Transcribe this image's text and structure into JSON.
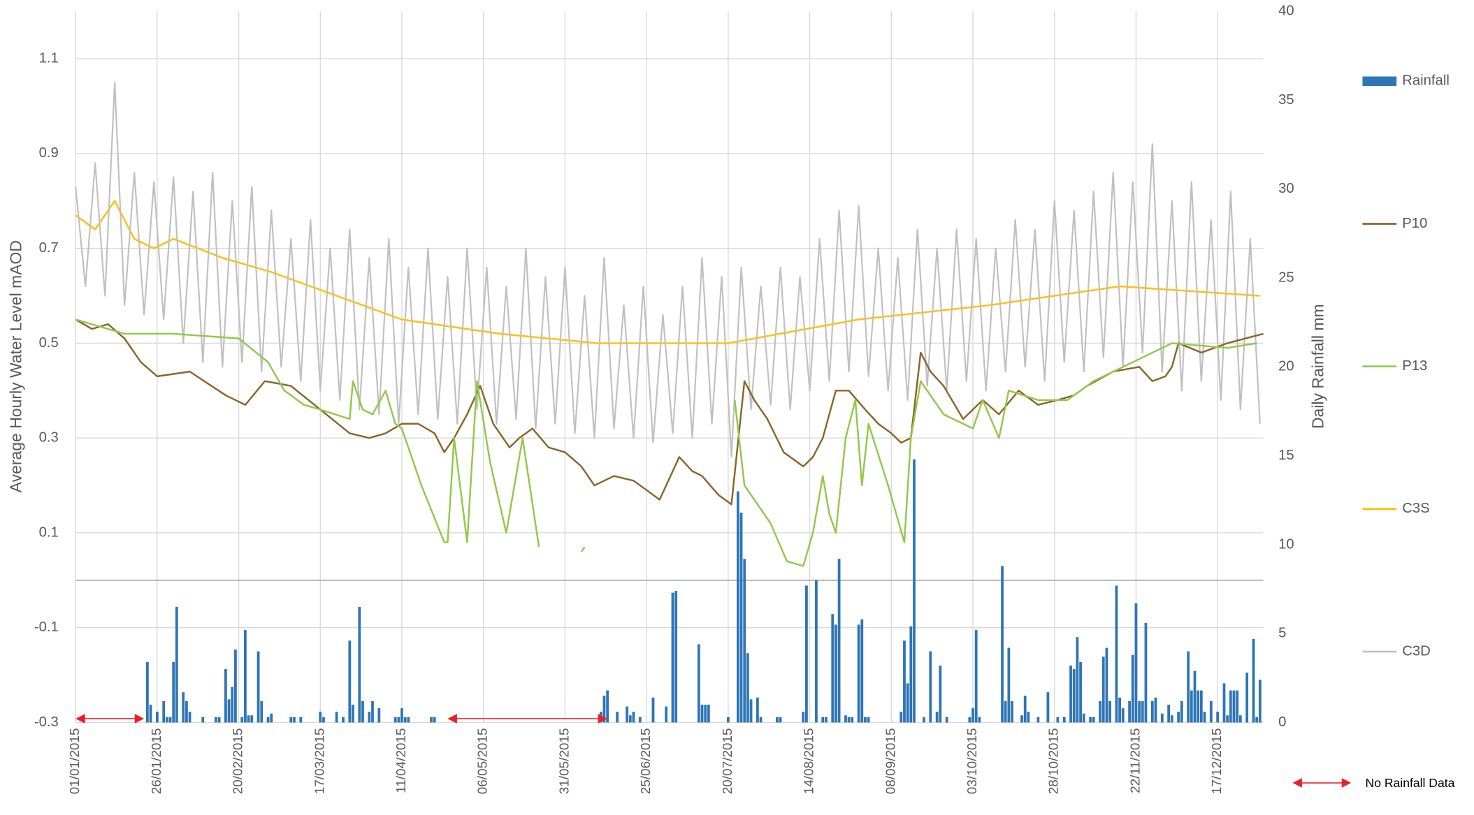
{
  "chart_data": {
    "type": "combo",
    "y_label": "Average Hourly Water Level mAOD",
    "y2_label": "Daily Rainfall mm",
    "xlim": [
      0,
      364
    ],
    "xticks": [
      {
        "value": 0,
        "label": "01/01/2015"
      },
      {
        "value": 25,
        "label": "26/01/2015"
      },
      {
        "value": 50,
        "label": "20/02/2015"
      },
      {
        "value": 75,
        "label": "17/03/2015"
      },
      {
        "value": 100,
        "label": "11/04/2015"
      },
      {
        "value": 125,
        "label": "06/05/2015"
      },
      {
        "value": 150,
        "label": "31/05/2015"
      },
      {
        "value": 175,
        "label": "25/06/2015"
      },
      {
        "value": 200,
        "label": "20/07/2015"
      },
      {
        "value": 225,
        "label": "14/08/2015"
      },
      {
        "value": 250,
        "label": "08/09/2015"
      },
      {
        "value": 275,
        "label": "03/10/2015"
      },
      {
        "value": 300,
        "label": "28/10/2015"
      },
      {
        "value": 325,
        "label": "22/11/2015"
      },
      {
        "value": 350,
        "label": "17/12/2015"
      }
    ],
    "ylim": [
      -0.3,
      1.2
    ],
    "yticks": [
      -0.3,
      -0.1,
      0.1,
      0.3,
      0.5,
      0.7,
      0.9,
      1.1
    ],
    "y2lim": [
      0,
      40
    ],
    "y2ticks": [
      0,
      5,
      10,
      15,
      20,
      25,
      30,
      35,
      40
    ],
    "grid": true,
    "legend": "right",
    "series": [
      {
        "name": "Rainfall",
        "type": "bar",
        "axis": "y2",
        "color": "#2e75b6",
        "x": [
          22,
          23,
          25,
          27,
          28,
          29,
          30,
          31,
          33,
          34,
          35,
          39,
          43,
          44,
          46,
          47,
          48,
          49,
          51,
          52,
          53,
          54,
          56,
          57,
          59,
          60,
          66,
          67,
          69,
          75,
          76,
          80,
          82,
          84,
          85,
          87,
          88,
          90,
          91,
          93,
          98,
          99,
          100,
          101,
          102,
          109,
          110,
          161,
          162,
          163,
          166,
          169,
          170,
          171,
          173,
          177,
          181,
          183,
          184,
          191,
          192,
          193,
          194,
          200,
          203,
          204,
          205,
          206,
          207,
          209,
          210,
          215,
          216,
          223,
          224,
          227,
          229,
          230,
          232,
          233,
          234,
          236,
          237,
          238,
          240,
          241,
          242,
          243,
          253,
          254,
          255,
          256,
          257,
          260,
          262,
          264,
          265,
          267,
          274,
          275,
          276,
          277,
          284,
          285,
          286,
          287,
          290,
          291,
          292,
          295,
          298,
          301,
          303,
          305,
          306,
          307,
          308,
          309,
          311,
          312,
          314,
          315,
          316,
          317,
          319,
          320,
          321,
          323,
          324,
          325,
          326,
          327,
          328,
          330,
          331,
          333,
          335,
          336,
          338,
          339,
          341,
          342,
          343,
          344,
          345,
          346,
          348,
          350,
          352,
          353,
          354,
          355,
          356,
          357,
          359,
          361,
          362,
          363
        ],
        "values": [
          3.4,
          1.0,
          0.6,
          1.2,
          0.3,
          0.3,
          3.4,
          6.5,
          1.7,
          1.2,
          0.6,
          0.3,
          0.3,
          0.3,
          3.0,
          1.3,
          2.0,
          4.1,
          0.3,
          5.2,
          0.4,
          0.4,
          4.0,
          1.2,
          0.3,
          0.5,
          0.3,
          0.3,
          0.3,
          0.6,
          0.3,
          0.6,
          0.3,
          4.6,
          1.0,
          6.5,
          1.2,
          0.6,
          1.2,
          0.8,
          0.3,
          0.3,
          0.8,
          0.3,
          0.3,
          0.3,
          0.3,
          0.6,
          1.5,
          1.8,
          0.6,
          0.9,
          0.4,
          0.6,
          0.3,
          1.4,
          0.9,
          7.3,
          7.4,
          4.4,
          1.0,
          1.0,
          1.0,
          0.3,
          13.0,
          11.8,
          9.2,
          3.9,
          1.3,
          1.4,
          0.3,
          0.3,
          0.3,
          0.6,
          7.7,
          8.0,
          0.3,
          0.3,
          6.1,
          5.5,
          9.2,
          0.4,
          0.3,
          0.3,
          5.5,
          5.8,
          0.3,
          0.3,
          0.6,
          4.6,
          2.2,
          5.4,
          14.8,
          0.3,
          4.0,
          0.6,
          3.2,
          0.3,
          0.3,
          0.8,
          5.2,
          0.3,
          8.8,
          1.2,
          4.2,
          1.2,
          0.4,
          1.5,
          0.6,
          0.3,
          1.7,
          0.3,
          0.3,
          3.2,
          3.0,
          4.8,
          3.4,
          0.5,
          0.3,
          0.3,
          1.2,
          3.7,
          4.2,
          1.2,
          7.7,
          1.4,
          0.8,
          1.2,
          3.8,
          6.7,
          1.2,
          1.2,
          5.6,
          1.2,
          1.4,
          0.5,
          1.0,
          0.4,
          0.6,
          1.2,
          4.0,
          1.8,
          2.9,
          1.8,
          1.8,
          0.6,
          1.2,
          0.6,
          2.2,
          0.4,
          1.8,
          1.8,
          1.8,
          0.4,
          2.8,
          4.7,
          0.3,
          2.4
        ]
      },
      {
        "name": "P10",
        "type": "line",
        "color": "#8c6428",
        "x": [
          0,
          5,
          10,
          15,
          20,
          25,
          35,
          46,
          52,
          58,
          66,
          75,
          84,
          90,
          95,
          100,
          105,
          110,
          113,
          116,
          120,
          124,
          128,
          133,
          136,
          140,
          145,
          150,
          155,
          159,
          165,
          171,
          175,
          179,
          185,
          189,
          192,
          197,
          201,
          205,
          208,
          212,
          217,
          223,
          226,
          229,
          233,
          237,
          242,
          246,
          250,
          253,
          256,
          259,
          262,
          266,
          272,
          278,
          283,
          289,
          295,
          301,
          306,
          310,
          318,
          326,
          330,
          334,
          336,
          338,
          345,
          353,
          364
        ],
        "values": [
          0.55,
          0.53,
          0.54,
          0.51,
          0.46,
          0.43,
          0.44,
          0.39,
          0.37,
          0.42,
          0.41,
          0.36,
          0.31,
          0.3,
          0.31,
          0.33,
          0.33,
          0.31,
          0.27,
          0.3,
          0.35,
          0.41,
          0.33,
          0.28,
          0.3,
          0.32,
          0.28,
          0.27,
          0.24,
          0.2,
          0.22,
          0.21,
          0.19,
          0.17,
          0.26,
          0.23,
          0.22,
          0.18,
          0.16,
          0.42,
          0.38,
          0.34,
          0.27,
          0.24,
          0.26,
          0.3,
          0.4,
          0.4,
          0.36,
          0.33,
          0.31,
          0.29,
          0.3,
          0.48,
          0.44,
          0.41,
          0.34,
          0.38,
          0.35,
          0.4,
          0.37,
          0.38,
          0.39,
          0.41,
          0.44,
          0.45,
          0.42,
          0.43,
          0.45,
          0.5,
          0.48,
          0.5,
          0.52
        ]
      },
      {
        "name": "P13",
        "type": "line",
        "color": "#92c84a",
        "x": [
          0,
          15,
          30,
          50,
          59,
          64,
          70,
          75,
          84,
          85,
          88,
          91,
          95,
          98,
          100,
          106,
          113,
          114,
          116,
          120,
          123,
          127,
          132,
          137,
          142,
          143,
          155,
          156,
          157,
          202,
          205,
          210,
          213,
          218,
          223,
          226,
          229,
          231,
          233,
          236,
          239,
          241,
          243,
          249,
          254,
          256,
          259,
          266,
          275,
          278,
          283,
          286,
          295,
          304,
          312,
          324,
          336,
          353,
          362
        ],
        "values": [
          0.55,
          0.52,
          0.52,
          0.51,
          0.46,
          0.4,
          0.37,
          0.36,
          0.34,
          0.42,
          0.36,
          0.35,
          0.4,
          0.33,
          0.32,
          0.2,
          0.08,
          0.08,
          0.3,
          0.08,
          0.42,
          0.25,
          0.1,
          0.3,
          0.07,
          null,
          0.06,
          0.07,
          null,
          0.38,
          0.2,
          0.15,
          0.12,
          0.04,
          0.03,
          0.1,
          0.22,
          0.14,
          0.1,
          0.3,
          0.38,
          0.2,
          0.33,
          0.2,
          0.08,
          0.3,
          0.42,
          0.35,
          0.32,
          0.38,
          0.3,
          0.4,
          0.38,
          0.38,
          0.42,
          0.46,
          0.5,
          0.49,
          0.5
        ]
      },
      {
        "name": "C3S",
        "type": "line",
        "color": "#ffc000",
        "x": [
          0,
          6,
          12,
          18,
          24,
          30,
          45,
          60,
          80,
          100,
          130,
          160,
          200,
          240,
          280,
          320,
          363
        ],
        "values": [
          0.77,
          0.74,
          0.8,
          0.72,
          0.7,
          0.72,
          0.68,
          0.65,
          0.6,
          0.55,
          0.52,
          0.5,
          0.5,
          0.55,
          0.58,
          0.62,
          0.6
        ]
      },
      {
        "name": "C3D",
        "type": "line",
        "color": "#c0c0c0",
        "x": [
          0,
          3,
          6,
          9,
          12,
          15,
          18,
          21,
          24,
          27,
          30,
          33,
          36,
          39,
          42,
          45,
          48,
          51,
          54,
          57,
          60,
          63,
          66,
          69,
          72,
          75,
          78,
          81,
          84,
          87,
          90,
          93,
          96,
          99,
          102,
          105,
          108,
          111,
          114,
          117,
          120,
          123,
          126,
          129,
          132,
          135,
          138,
          141,
          144,
          147,
          150,
          153,
          156,
          159,
          162,
          165,
          168,
          171,
          174,
          177,
          180,
          183,
          186,
          189,
          192,
          195,
          198,
          201,
          204,
          207,
          210,
          213,
          216,
          219,
          222,
          225,
          228,
          231,
          234,
          237,
          240,
          243,
          246,
          249,
          252,
          255,
          258,
          261,
          264,
          267,
          270,
          273,
          276,
          279,
          282,
          285,
          288,
          291,
          294,
          297,
          300,
          303,
          306,
          309,
          312,
          315,
          318,
          321,
          324,
          327,
          330,
          333,
          336,
          339,
          342,
          345,
          348,
          351,
          354,
          357,
          360,
          363
        ],
        "values": [
          0.83,
          0.62,
          0.88,
          0.6,
          1.05,
          0.58,
          0.86,
          0.56,
          0.84,
          0.55,
          0.85,
          0.5,
          0.82,
          0.46,
          0.86,
          0.45,
          0.8,
          0.46,
          0.83,
          0.44,
          0.78,
          0.45,
          0.72,
          0.42,
          0.76,
          0.4,
          0.7,
          0.38,
          0.74,
          0.36,
          0.68,
          0.35,
          0.72,
          0.33,
          0.66,
          0.35,
          0.7,
          0.34,
          0.64,
          0.33,
          0.7,
          0.36,
          0.66,
          0.33,
          0.62,
          0.34,
          0.7,
          0.32,
          0.64,
          0.33,
          0.66,
          0.31,
          0.6,
          0.3,
          0.68,
          0.32,
          0.58,
          0.3,
          0.62,
          0.29,
          0.56,
          0.31,
          0.62,
          0.3,
          0.68,
          0.33,
          0.64,
          0.26,
          0.66,
          0.36,
          0.62,
          0.37,
          0.66,
          0.36,
          0.64,
          0.4,
          0.72,
          0.42,
          0.78,
          0.44,
          0.79,
          0.43,
          0.7,
          0.4,
          0.68,
          0.38,
          0.74,
          0.41,
          0.7,
          0.4,
          0.74,
          0.42,
          0.72,
          0.4,
          0.7,
          0.44,
          0.76,
          0.45,
          0.74,
          0.42,
          0.8,
          0.46,
          0.78,
          0.44,
          0.82,
          0.47,
          0.86,
          0.45,
          0.84,
          0.48,
          0.92,
          0.44,
          0.8,
          0.4,
          0.84,
          0.42,
          0.76,
          0.38,
          0.82,
          0.36,
          0.72,
          0.33
        ]
      }
    ],
    "annotations": [
      {
        "text": "No Rainfall Data",
        "color": "#e8202a",
        "ranges": [
          [
            0,
            21
          ],
          [
            114,
            163
          ]
        ]
      }
    ]
  }
}
